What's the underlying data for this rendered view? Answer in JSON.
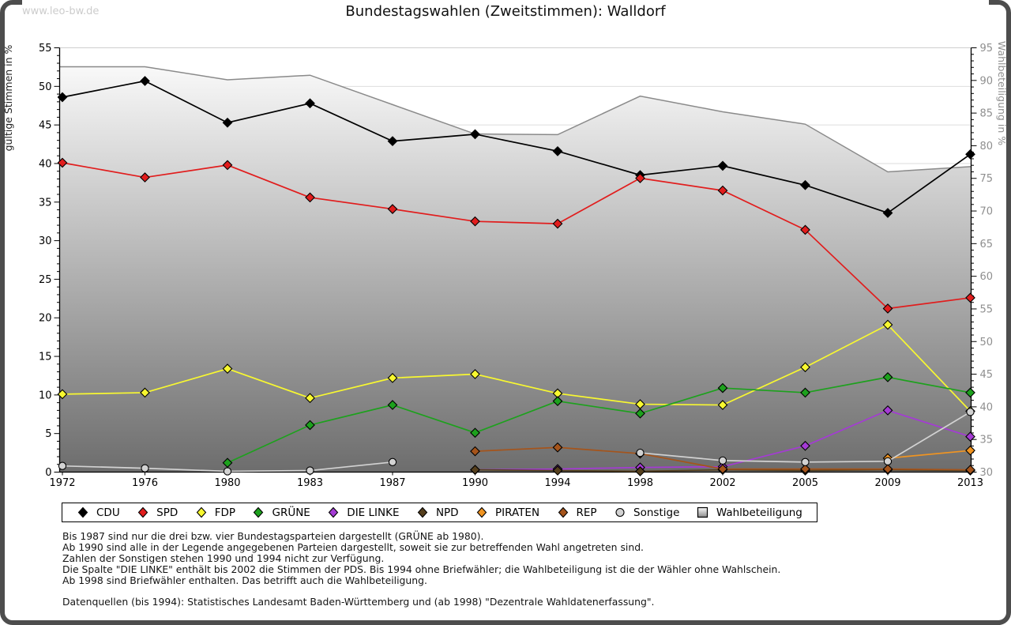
{
  "watermark": "www.leo-bw.de",
  "header": {
    "title": "Bundestagswahlen (Zweitstimmen): Walldorf"
  },
  "footnotes": [
    "Bis 1987 sind nur die drei bzw. vier Bundestagsparteien dargestellt (GRÜNE ab 1980).",
    "Ab 1990 sind alle in der Legende angegebenen Parteien dargestellt, soweit sie zur betreffenden Wahl angetreten sind.",
    "Zahlen der Sonstigen stehen 1990 und 1994 nicht zur Verfügung.",
    "Die Spalte \"DIE LINKE\" enthält bis 2002 die Stimmen der PDS. Bis 1994 ohne Briefwähler; die Wahlbeteiligung ist die der Wähler ohne Wahlschein.",
    "Ab 1998 sind Briefwähler enthalten. Das betrifft auch die Wahlbeteiligung.",
    "",
    "Datenquellen (bis 1994): Statistisches Landesamt Baden-Württemberg und (ab 1998) \"Dezentrale Wahldatenerfassung\"."
  ],
  "chart_data": {
    "type": "line",
    "title": "Bundestagswahlen (Zweitstimmen): Walldorf",
    "categories": [
      "1972",
      "1976",
      "1980",
      "1983",
      "1987",
      "1990",
      "1994",
      "1998",
      "2002",
      "2005",
      "2009",
      "2013"
    ],
    "left_axis": {
      "label": "gültige Stimmen in %",
      "min": 0,
      "max": 55,
      "tick_step": 5
    },
    "right_axis": {
      "label": "Wahlbeteiligung in %",
      "min": 30,
      "max": 95,
      "tick_step": 5
    },
    "grid": "horizontal, every 5 units, light gray",
    "legend_position": "bottom",
    "series": [
      {
        "name": "CDU",
        "color": "#000000",
        "axis": "left",
        "marker": "diamond",
        "values": [
          48.6,
          50.7,
          45.3,
          47.8,
          42.9,
          43.8,
          41.6,
          38.5,
          39.7,
          37.2,
          33.6,
          41.2
        ]
      },
      {
        "name": "SPD",
        "color": "#e11d1d",
        "axis": "left",
        "marker": "diamond",
        "values": [
          40.1,
          38.2,
          39.8,
          35.6,
          34.1,
          32.5,
          32.2,
          38.1,
          36.5,
          31.4,
          21.2,
          22.6
        ]
      },
      {
        "name": "FDP",
        "color": "#f8f830",
        "axis": "left",
        "marker": "diamond",
        "values": [
          10.1,
          10.3,
          13.4,
          9.6,
          12.2,
          12.7,
          10.2,
          8.8,
          8.7,
          13.6,
          19.1,
          7.9
        ]
      },
      {
        "name": "GRÜNE",
        "color": "#1da11d",
        "axis": "left",
        "marker": "diamond",
        "values": [
          null,
          null,
          1.2,
          6.1,
          8.7,
          5.1,
          9.2,
          7.6,
          10.9,
          10.3,
          12.3,
          10.3
        ]
      },
      {
        "name": "DIE LINKE",
        "color": "#a43bd4",
        "axis": "left",
        "marker": "diamond",
        "values": [
          null,
          null,
          null,
          null,
          null,
          0.3,
          0.4,
          0.6,
          0.7,
          3.4,
          8.0,
          4.6
        ]
      },
      {
        "name": "NPD",
        "color": "#553f1d",
        "axis": "left",
        "marker": "diamond",
        "values": [
          null,
          null,
          null,
          null,
          null,
          0.3,
          0.2,
          0.1,
          0.3,
          0.2,
          0.3,
          0.2
        ]
      },
      {
        "name": "PIRATEN",
        "color": "#f09421",
        "axis": "left",
        "marker": "diamond",
        "values": [
          null,
          null,
          null,
          null,
          null,
          null,
          null,
          null,
          null,
          null,
          1.8,
          2.8
        ]
      },
      {
        "name": "REP",
        "color": "#a5541b",
        "axis": "left",
        "marker": "diamond",
        "values": [
          null,
          null,
          null,
          null,
          null,
          2.7,
          3.2,
          2.4,
          0.4,
          0.4,
          0.4,
          0.3
        ]
      },
      {
        "name": "Sonstige",
        "color": "#d2d2d2",
        "axis": "left",
        "marker": "circle",
        "values": [
          0.8,
          0.5,
          0.1,
          0.2,
          1.3,
          null,
          null,
          2.5,
          1.5,
          1.3,
          1.4,
          7.8
        ]
      },
      {
        "name": "Wahlbeteiligung",
        "color": "#8a8a8a",
        "axis": "right",
        "marker": "none",
        "style": "area-gradient",
        "values": [
          92.1,
          92.1,
          90.1,
          90.8,
          86.3,
          81.8,
          81.7,
          87.6,
          85.2,
          83.3,
          76.0,
          76.8
        ]
      }
    ]
  }
}
